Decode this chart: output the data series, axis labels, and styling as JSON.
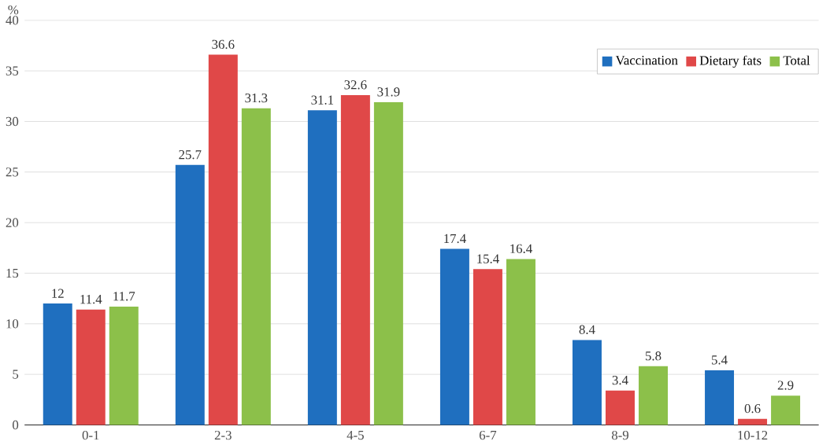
{
  "chart_data": {
    "type": "bar",
    "ylabel": "%",
    "categories": [
      "0-1",
      "2-3",
      "4-5",
      "6-7",
      "8-9",
      "10-12"
    ],
    "series": [
      {
        "name": "Vaccination",
        "color": "#1f6fbf",
        "values": [
          12,
          25.7,
          31.1,
          17.4,
          8.4,
          5.4
        ]
      },
      {
        "name": "Dietary fats",
        "color": "#e04848",
        "values": [
          11.4,
          36.6,
          32.6,
          15.4,
          3.4,
          0.6
        ]
      },
      {
        "name": "Total",
        "color": "#8cc04a",
        "values": [
          11.7,
          31.3,
          31.9,
          16.4,
          5.8,
          2.9
        ]
      }
    ],
    "ylim": [
      0,
      40
    ],
    "yticks": [
      0,
      5,
      10,
      15,
      20,
      25,
      30,
      35,
      40
    ],
    "grid": "y",
    "legend": "top right",
    "data_labels": true
  }
}
